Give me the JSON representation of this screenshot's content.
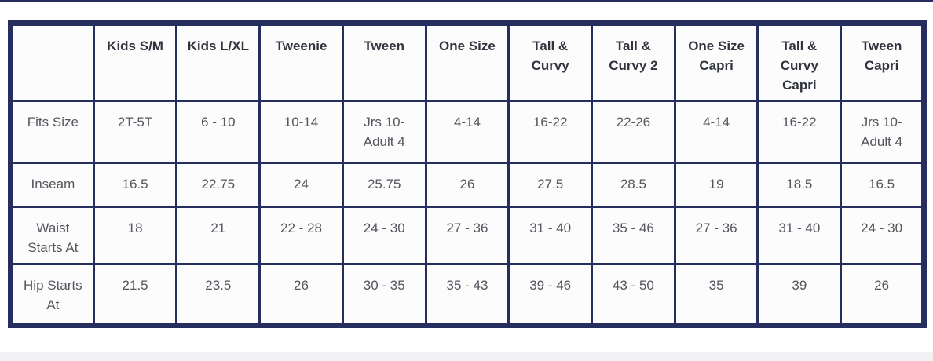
{
  "colors": {
    "navy": "#262d5f",
    "header_text": "#31343f",
    "body_text": "#54555d",
    "cell_bg": "#fcfcfd",
    "strip_bg": "#f1f1f4",
    "strip_border": "#e0e0e4"
  },
  "chart_data": {
    "type": "table",
    "title": "",
    "columns": [
      "",
      "Kids S/M",
      "Kids L/XL",
      "Tweenie",
      "Tween",
      "One Size",
      "Tall & Curvy",
      "Tall & Curvy 2",
      "One Size Capri",
      "Tall & Curvy Capri",
      "Tween Capri"
    ],
    "rows": [
      {
        "label": "Fits Size",
        "values": [
          "2T-5T",
          "6 - 10",
          "10-14",
          "Jrs 10- Adult 4",
          "4-14",
          "16-22",
          "22-26",
          "4-14",
          "16-22",
          "Jrs 10- Adult 4"
        ]
      },
      {
        "label": "Inseam",
        "values": [
          "16.5",
          "22.75",
          "24",
          "25.75",
          "26",
          "27.5",
          "28.5",
          "19",
          "18.5",
          "16.5"
        ]
      },
      {
        "label": "Waist Starts At",
        "values": [
          "18",
          "21",
          "22 - 28",
          "24 - 30",
          "27 - 36",
          "31 - 40",
          "35 - 46",
          "27 - 36",
          "31 - 40",
          "24 - 30"
        ]
      },
      {
        "label": "Hip Starts At",
        "values": [
          "21.5",
          "23.5",
          "26",
          "30 - 35",
          "35 - 43",
          "39 - 46",
          "43 - 50",
          "35",
          "39",
          "26"
        ]
      }
    ]
  }
}
